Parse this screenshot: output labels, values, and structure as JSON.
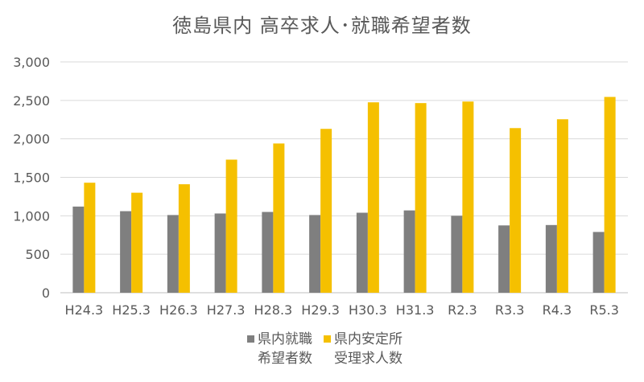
{
  "chart_data": {
    "type": "bar",
    "title": "徳島県内 高卒求人･就職希望者数",
    "categories": [
      "H24.3",
      "H25.3",
      "H26.3",
      "H27.3",
      "H28.3",
      "H29.3",
      "H30.3",
      "H31.3",
      "R2.3",
      "R3.3",
      "R4.3",
      "R5.3"
    ],
    "series": [
      {
        "name": "県内就職\n希望者数",
        "color": "#7f7f7f",
        "values": [
          1120,
          1060,
          1010,
          1030,
          1050,
          1010,
          1040,
          1070,
          1000,
          875,
          880,
          790
        ]
      },
      {
        "name": "県内安定所\n受理求人数",
        "color": "#f5c000",
        "values": [
          1430,
          1300,
          1410,
          1730,
          1940,
          2130,
          2475,
          2465,
          2485,
          2140,
          2255,
          2545
        ]
      }
    ],
    "ylim": [
      0,
      3000
    ],
    "yticks": [
      0,
      500,
      1000,
      1500,
      2000,
      2500,
      3000
    ],
    "ytick_labels": [
      "0",
      "500",
      "1,000",
      "1,500",
      "2,000",
      "2,500",
      "3,000"
    ],
    "xlabel": "",
    "ylabel": "",
    "grid": true,
    "legend_position": "bottom"
  }
}
